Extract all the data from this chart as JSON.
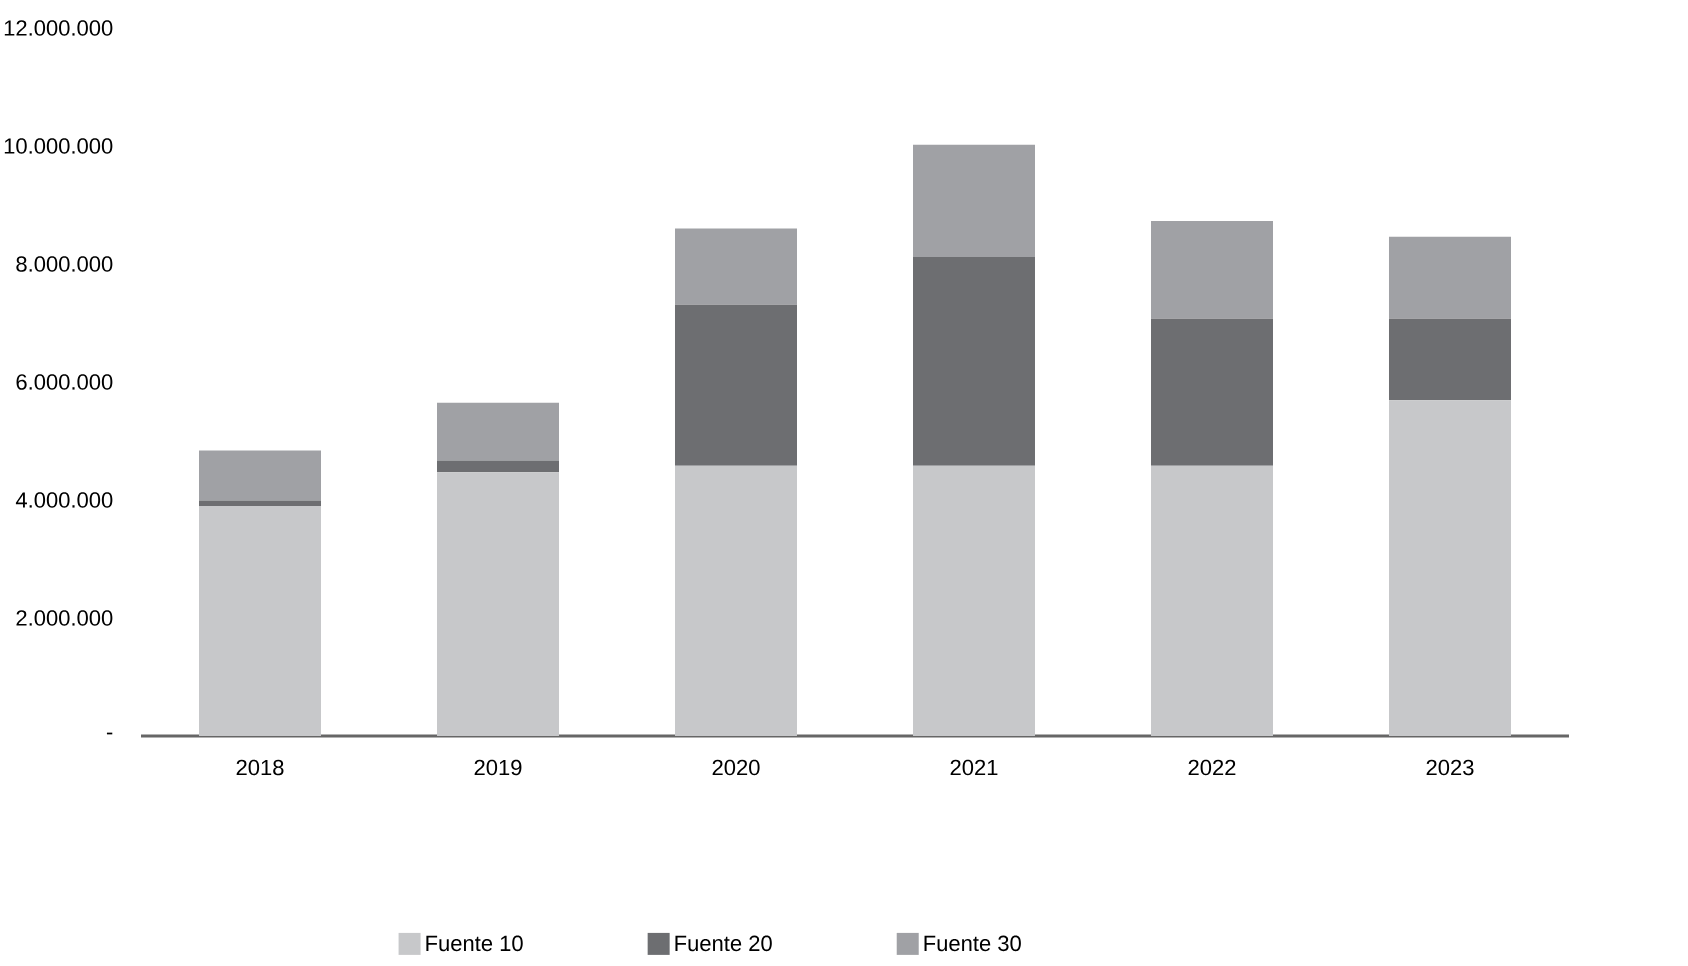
{
  "chart_data": {
    "type": "bar",
    "stacked": true,
    "categories": [
      "2018",
      "2019",
      "2020",
      "2021",
      "2022",
      "2023"
    ],
    "series": [
      {
        "name": "Fuente 10",
        "color": "#c7c8ca",
        "values": [
          3900000,
          4470000,
          4580000,
          4580000,
          4580000,
          5690000
        ]
      },
      {
        "name": "Fuente 20",
        "color": "#6d6e71",
        "values": [
          90000,
          200000,
          2730000,
          3540000,
          2490000,
          1380000
        ]
      },
      {
        "name": "Fuente 30",
        "color": "#a0a1a5",
        "values": [
          850000,
          980000,
          1290000,
          1900000,
          1660000,
          1390000
        ]
      }
    ],
    "ylim": [
      0,
      12000000
    ],
    "yticks": [
      {
        "value": 0,
        "label": "-"
      },
      {
        "value": 2000000,
        "label": "2.000.000"
      },
      {
        "value": 4000000,
        "label": "4.000.000"
      },
      {
        "value": 6000000,
        "label": "6.000.000"
      },
      {
        "value": 8000000,
        "label": "8.000.000"
      },
      {
        "value": 10000000,
        "label": "10.000.000"
      },
      {
        "value": 12000000,
        "label": "12.000.000"
      }
    ],
    "legend": "bottom",
    "grid": false
  }
}
